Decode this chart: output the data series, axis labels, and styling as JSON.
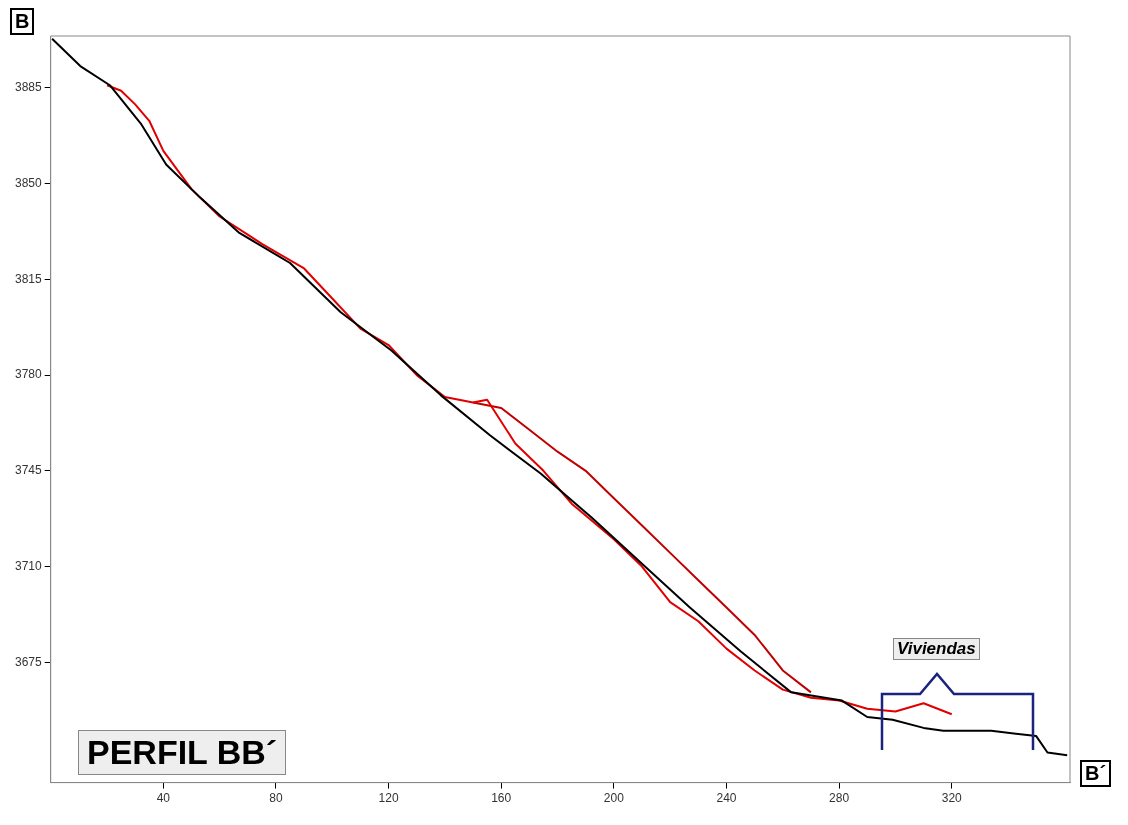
{
  "chart_data": {
    "type": "line",
    "annotations": [
      "B",
      "B´",
      "PERFIL BB´",
      "Viviendas"
    ],
    "xlim": [
      0,
      362
    ],
    "xticks": [
      40,
      80,
      120,
      160,
      200,
      240,
      280,
      320
    ],
    "ylim": [
      3631,
      3904
    ],
    "yticks": [
      3675,
      3710,
      3745,
      3780,
      3815,
      3850,
      3885
    ],
    "grid": false,
    "legend": false,
    "series": [
      {
        "color": "#000000",
        "x": [
          0.5,
          10.5,
          21,
          32,
          41,
          53,
          67,
          85,
          103,
          121,
          138.6,
          156,
          174,
          192,
          210,
          227,
          245,
          263,
          281,
          290,
          299,
          310,
          317,
          334,
          350,
          354,
          361
        ],
        "values": [
          3903,
          3893,
          3886,
          3872,
          3857,
          3845,
          3832,
          3821,
          3803,
          3789,
          3772.6,
          3758,
          3744,
          3728,
          3711,
          3695,
          3679,
          3664,
          3661,
          3655,
          3654,
          3651,
          3650,
          3650,
          3648,
          3642,
          3641
        ]
      },
      {
        "color": "#e00000",
        "x": [
          20,
          25,
          30,
          35,
          40,
          50,
          60,
          75,
          90,
          100,
          110,
          120,
          130,
          140,
          150,
          155,
          165,
          175,
          185,
          200,
          210,
          220,
          230,
          240,
          250,
          260,
          270,
          280,
          290,
          300,
          310,
          320
        ],
        "values": [
          3886,
          3884,
          3879,
          3873,
          3862,
          3848,
          3838,
          3828,
          3819,
          3808,
          3797,
          3791,
          3780,
          3772,
          3770,
          3771,
          3755,
          3745,
          3733,
          3720,
          3710,
          3697,
          3690,
          3680,
          3672,
          3665,
          3662,
          3661,
          3658,
          3657,
          3660,
          3656
        ]
      },
      {
        "color": "#c00000",
        "x": [
          150,
          160,
          170,
          180,
          190,
          200,
          210,
          220,
          230,
          240,
          250,
          260,
          270
        ],
        "values": [
          3770,
          3768,
          3760,
          3752,
          3745,
          3735,
          3725,
          3715,
          3705,
          3695,
          3685,
          3672,
          3664
        ]
      }
    ]
  }
}
